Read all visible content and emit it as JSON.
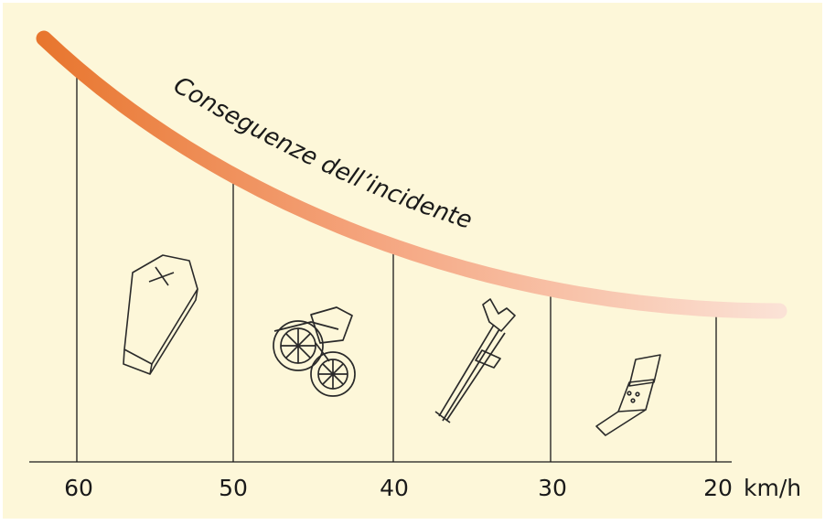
{
  "curve_label": "Conseguenze dell’incidente",
  "axis": {
    "ticks": [
      "60",
      "50",
      "40",
      "30",
      "20"
    ],
    "unit": "km/h"
  },
  "icons": [
    {
      "name": "coffin-icon",
      "speed_range": "60-50"
    },
    {
      "name": "wheelchair-icon",
      "speed_range": "50-40"
    },
    {
      "name": "crutch-icon",
      "speed_range": "40-30"
    },
    {
      "name": "bandage-icon",
      "speed_range": "30-20"
    }
  ],
  "colors": {
    "background": "#fdf7d9",
    "curve_start": "#e8762e",
    "curve_end": "#fbe2d6",
    "lines": "#1a1a1a"
  }
}
